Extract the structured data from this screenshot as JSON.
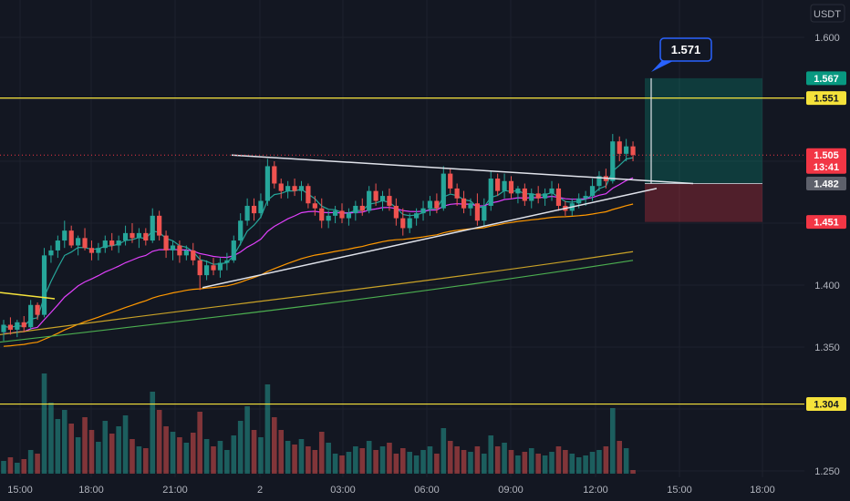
{
  "chart_data": {
    "type": "candlestick",
    "currency": "USDT",
    "y_axis": {
      "ticks": [
        "1.600",
        "1.400",
        "1.350",
        "1.250"
      ],
      "tick_values": [
        1.6,
        1.4,
        1.35,
        1.25
      ],
      "range": [
        1.245,
        1.628
      ]
    },
    "x_axis": {
      "ticks": [
        "15:00",
        "18:00",
        "21:00",
        "2",
        "03:00",
        "06:00",
        "09:00",
        "12:00",
        "15:00",
        "18:00"
      ]
    },
    "price_tags": [
      {
        "value": "1.567",
        "bg": "#089981",
        "fg": "#ffffff"
      },
      {
        "value": "1.551",
        "bg": "#f5e23b",
        "fg": "#131722"
      },
      {
        "value": "1.505",
        "sub": "13:41",
        "bg": "#f23645",
        "fg": "#ffffff"
      },
      {
        "value": "1.482",
        "bg": "#5d606b",
        "fg": "#ffffff"
      },
      {
        "value": "1.451",
        "bg": "#f23645",
        "fg": "#ffffff"
      },
      {
        "value": "1.304",
        "bg": "#f5e23b",
        "fg": "#131722"
      }
    ],
    "callout": "1.571",
    "horizontal_levels": [
      1.551,
      1.304
    ],
    "current_price": 1.505,
    "position": {
      "entry": 1.482,
      "target": 1.567,
      "stop": 1.451
    },
    "colors": {
      "up": "#26a69a",
      "down": "#ef5350",
      "level": "#f5e23b",
      "ema_short": "#26a69a",
      "ema_mid": "#e040fb",
      "ema_long": "#ff9800",
      "ema_longer": "#4caf50",
      "background": "#131722",
      "grid": "#1e222d"
    },
    "candles": [
      [
        1.362,
        1.372,
        1.355,
        1.368
      ],
      [
        1.368,
        1.374,
        1.36,
        1.364
      ],
      [
        1.364,
        1.372,
        1.358,
        1.37
      ],
      [
        1.37,
        1.375,
        1.362,
        1.366
      ],
      [
        1.366,
        1.388,
        1.364,
        1.384
      ],
      [
        1.384,
        1.386,
        1.372,
        1.376
      ],
      [
        1.376,
        1.43,
        1.374,
        1.424
      ],
      [
        1.424,
        1.432,
        1.418,
        1.428
      ],
      [
        1.428,
        1.44,
        1.422,
        1.436
      ],
      [
        1.436,
        1.452,
        1.43,
        1.444
      ],
      [
        1.444,
        1.448,
        1.43,
        1.432
      ],
      [
        1.432,
        1.44,
        1.424,
        1.438
      ],
      [
        1.438,
        1.446,
        1.428,
        1.43
      ],
      [
        1.43,
        1.436,
        1.42,
        1.426
      ],
      [
        1.426,
        1.434,
        1.42,
        1.43
      ],
      [
        1.43,
        1.44,
        1.426,
        1.436
      ],
      [
        1.436,
        1.442,
        1.428,
        1.432
      ],
      [
        1.432,
        1.44,
        1.426,
        1.436
      ],
      [
        1.436,
        1.448,
        1.432,
        1.442
      ],
      [
        1.442,
        1.45,
        1.434,
        1.438
      ],
      [
        1.438,
        1.446,
        1.43,
        1.442
      ],
      [
        1.442,
        1.446,
        1.432,
        1.436
      ],
      [
        1.436,
        1.462,
        1.434,
        1.456
      ],
      [
        1.456,
        1.46,
        1.436,
        1.44
      ],
      [
        1.44,
        1.444,
        1.422,
        1.428
      ],
      [
        1.428,
        1.436,
        1.42,
        1.432
      ],
      [
        1.432,
        1.436,
        1.418,
        1.424
      ],
      [
        1.424,
        1.432,
        1.42,
        1.428
      ],
      [
        1.428,
        1.434,
        1.416,
        1.42
      ],
      [
        1.42,
        1.424,
        1.396,
        1.408
      ],
      [
        1.408,
        1.42,
        1.404,
        1.416
      ],
      [
        1.416,
        1.422,
        1.408,
        1.412
      ],
      [
        1.412,
        1.422,
        1.406,
        1.418
      ],
      [
        1.418,
        1.426,
        1.412,
        1.42
      ],
      [
        1.42,
        1.44,
        1.418,
        1.436
      ],
      [
        1.436,
        1.458,
        1.432,
        1.452
      ],
      [
        1.452,
        1.47,
        1.448,
        1.464
      ],
      [
        1.464,
        1.47,
        1.452,
        1.458
      ],
      [
        1.458,
        1.474,
        1.454,
        1.468
      ],
      [
        1.468,
        1.502,
        1.464,
        1.496
      ],
      [
        1.496,
        1.5,
        1.478,
        1.482
      ],
      [
        1.482,
        1.486,
        1.47,
        1.476
      ],
      [
        1.476,
        1.484,
        1.47,
        1.48
      ],
      [
        1.48,
        1.486,
        1.472,
        1.476
      ],
      [
        1.476,
        1.484,
        1.468,
        1.48
      ],
      [
        1.48,
        1.482,
        1.462,
        1.466
      ],
      [
        1.466,
        1.472,
        1.456,
        1.462
      ],
      [
        1.462,
        1.47,
        1.446,
        1.452
      ],
      [
        1.452,
        1.46,
        1.446,
        1.456
      ],
      [
        1.456,
        1.464,
        1.45,
        1.46
      ],
      [
        1.46,
        1.466,
        1.45,
        1.454
      ],
      [
        1.454,
        1.462,
        1.448,
        1.458
      ],
      [
        1.458,
        1.468,
        1.452,
        1.464
      ],
      [
        1.464,
        1.47,
        1.456,
        1.46
      ],
      [
        1.46,
        1.48,
        1.458,
        1.476
      ],
      [
        1.476,
        1.482,
        1.464,
        1.468
      ],
      [
        1.468,
        1.476,
        1.46,
        1.472
      ],
      [
        1.472,
        1.478,
        1.46,
        1.464
      ],
      [
        1.464,
        1.47,
        1.448,
        1.454
      ],
      [
        1.454,
        1.462,
        1.44,
        1.446
      ],
      [
        1.446,
        1.458,
        1.442,
        1.454
      ],
      [
        1.454,
        1.462,
        1.448,
        1.458
      ],
      [
        1.458,
        1.468,
        1.452,
        1.462
      ],
      [
        1.462,
        1.472,
        1.456,
        1.468
      ],
      [
        1.468,
        1.474,
        1.458,
        1.462
      ],
      [
        1.462,
        1.496,
        1.46,
        1.49
      ],
      [
        1.49,
        1.494,
        1.474,
        1.478
      ],
      [
        1.478,
        1.482,
        1.464,
        1.47
      ],
      [
        1.47,
        1.476,
        1.458,
        1.462
      ],
      [
        1.462,
        1.47,
        1.456,
        1.466
      ],
      [
        1.466,
        1.474,
        1.448,
        1.452
      ],
      [
        1.452,
        1.47,
        1.448,
        1.464
      ],
      [
        1.464,
        1.492,
        1.46,
        1.486
      ],
      [
        1.486,
        1.49,
        1.472,
        1.476
      ],
      [
        1.476,
        1.49,
        1.47,
        1.484
      ],
      [
        1.484,
        1.488,
        1.47,
        1.474
      ],
      [
        1.474,
        1.48,
        1.466,
        1.478
      ],
      [
        1.478,
        1.482,
        1.464,
        1.468
      ],
      [
        1.468,
        1.478,
        1.462,
        1.474
      ],
      [
        1.474,
        1.48,
        1.466,
        1.47
      ],
      [
        1.47,
        1.478,
        1.464,
        1.474
      ],
      [
        1.474,
        1.484,
        1.468,
        1.478
      ],
      [
        1.478,
        1.482,
        1.46,
        1.464
      ],
      [
        1.464,
        1.468,
        1.456,
        1.46
      ],
      [
        1.46,
        1.47,
        1.456,
        1.466
      ],
      [
        1.466,
        1.474,
        1.462,
        1.47
      ],
      [
        1.47,
        1.476,
        1.464,
        1.472
      ],
      [
        1.472,
        1.486,
        1.468,
        1.48
      ],
      [
        1.48,
        1.492,
        1.476,
        1.488
      ],
      [
        1.488,
        1.494,
        1.478,
        1.484
      ],
      [
        1.484,
        1.522,
        1.482,
        1.516
      ],
      [
        1.516,
        1.52,
        1.5,
        1.506
      ],
      [
        1.506,
        1.518,
        1.5,
        1.512
      ],
      [
        1.512,
        1.516,
        1.5,
        1.505
      ]
    ],
    "volumes": [
      14,
      18,
      12,
      16,
      26,
      22,
      110,
      78,
      60,
      70,
      55,
      40,
      62,
      48,
      35,
      58,
      44,
      52,
      64,
      38,
      30,
      28,
      90,
      70,
      52,
      46,
      40,
      34,
      45,
      68,
      38,
      30,
      36,
      26,
      42,
      58,
      74,
      48,
      40,
      98,
      62,
      48,
      36,
      32,
      38,
      30,
      26,
      46,
      34,
      22,
      20,
      24,
      30,
      28,
      36,
      26,
      30,
      34,
      22,
      28,
      24,
      20,
      26,
      30,
      22,
      50,
      36,
      30,
      26,
      24,
      30,
      22,
      42,
      30,
      34,
      26,
      20,
      24,
      28,
      22,
      20,
      24,
      30,
      26,
      22,
      18,
      20,
      24,
      26,
      30,
      72,
      36,
      28,
      4
    ]
  }
}
